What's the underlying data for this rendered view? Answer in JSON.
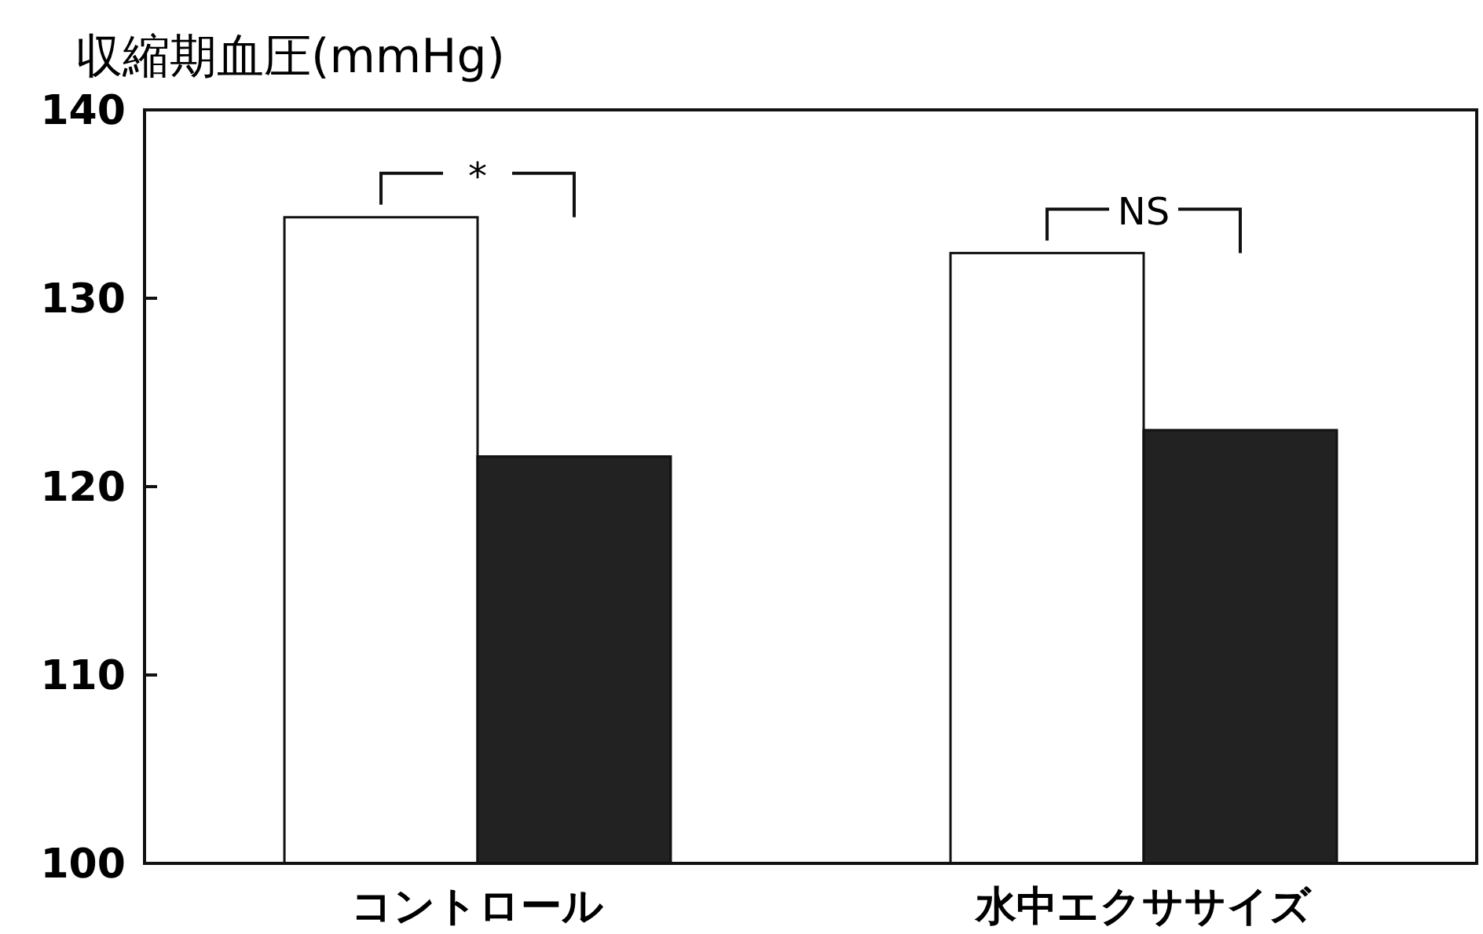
{
  "chart_data": {
    "type": "bar",
    "title": "収縮期血圧(mmHg)",
    "categories": [
      "コントロール",
      "水中エクササイズ"
    ],
    "series": [
      {
        "color": "#ffffff",
        "values": [
          134.3,
          132.4
        ]
      },
      {
        "color": "#222222",
        "values": [
          121.6,
          123.0
        ]
      }
    ],
    "ylim": [
      100,
      140
    ],
    "yticks": [
      100,
      110,
      120,
      130,
      140
    ],
    "annotations": [
      "*",
      "NS"
    ]
  }
}
